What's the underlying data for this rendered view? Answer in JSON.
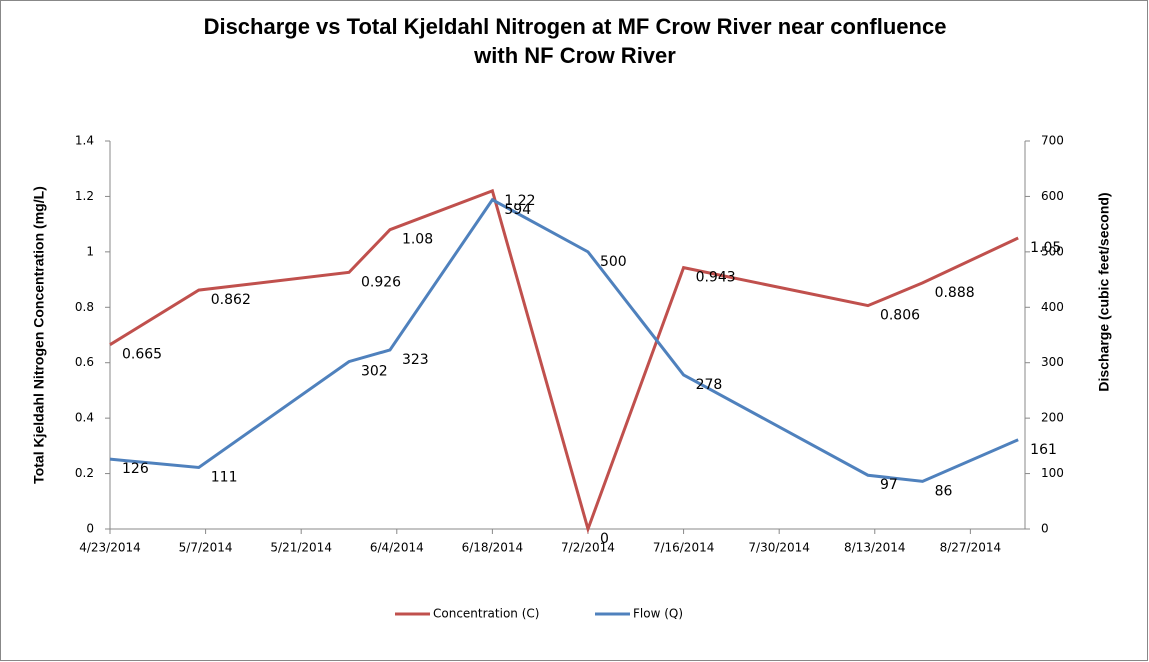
{
  "chart_data": {
    "type": "line",
    "title": "Discharge vs Total Kjeldahl Nitrogen at MF Crow River near confluence",
    "subtitle": "with NF Crow River",
    "ylabel": "Total Kjeldahl Nitrogen Concentration (mg/L)",
    "y2label": "Discharge (cubic feet/second)",
    "x": [
      "2014-04-23",
      "2014-05-06",
      "2014-05-28",
      "2014-06-03",
      "2014-06-18",
      "2014-07-02",
      "2014-07-16",
      "2014-08-12",
      "2014-08-20",
      "2014-09-03"
    ],
    "series": [
      {
        "name": "Concentration (C)",
        "color": "#c0504d",
        "axis": "y",
        "values": [
          0.665,
          0.862,
          0.926,
          1.08,
          1.22,
          0,
          0.943,
          0.806,
          0.888,
          1.05
        ]
      },
      {
        "name": "Flow (Q)",
        "color": "#4f81bd",
        "axis": "y2",
        "values": [
          126,
          111,
          302,
          323,
          594,
          500,
          278,
          97,
          86,
          161
        ]
      }
    ],
    "xlim": [
      "2014-04-23",
      "2014-09-04"
    ],
    "xticks": [
      {
        "value": "2014-04-23",
        "label": "4/23/2014"
      },
      {
        "value": "2014-05-07",
        "label": "5/7/2014"
      },
      {
        "value": "2014-05-21",
        "label": "5/21/2014"
      },
      {
        "value": "2014-06-04",
        "label": "6/4/2014"
      },
      {
        "value": "2014-06-18",
        "label": "6/18/2014"
      },
      {
        "value": "2014-07-02",
        "label": "7/2/2014"
      },
      {
        "value": "2014-07-16",
        "label": "7/16/2014"
      },
      {
        "value": "2014-07-30",
        "label": "7/30/2014"
      },
      {
        "value": "2014-08-13",
        "label": "8/13/2014"
      },
      {
        "value": "2014-08-27",
        "label": "8/27/2014"
      }
    ],
    "ylim": [
      0,
      1.4
    ],
    "yticks": [
      0,
      0.2,
      0.4,
      0.6,
      0.8,
      1,
      1.2,
      1.4
    ],
    "y2lim": [
      0,
      700
    ],
    "y2ticks": [
      0,
      100,
      200,
      300,
      400,
      500,
      600,
      700
    ],
    "grid": false,
    "legend": "bottom"
  }
}
